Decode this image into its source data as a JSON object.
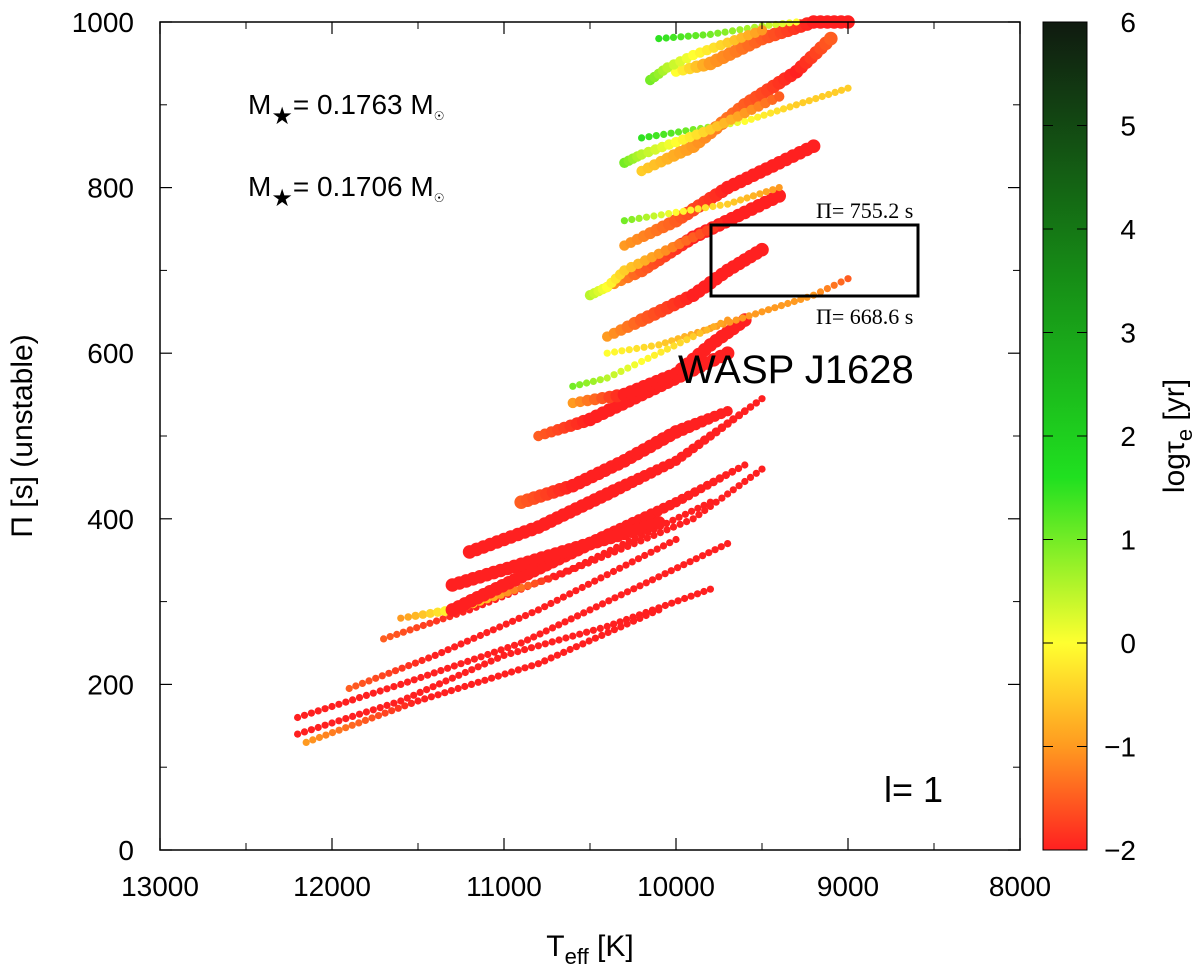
{
  "chart_data": {
    "type": "scatter",
    "title": "",
    "xlabel": {
      "main": "T",
      "sub": "eff",
      "unit": " [K]"
    },
    "ylabel": "Π [s] (unstable)",
    "xlim": [
      13000,
      8000
    ],
    "x_reversed": true,
    "ylim": [
      0,
      1000
    ],
    "x_ticks": [
      "13000",
      "12000",
      "11000",
      "10000",
      "9000",
      "8000"
    ],
    "y_ticks": [
      "0",
      "200",
      "400",
      "600",
      "800",
      "1000"
    ],
    "grid": false,
    "colorbar": {
      "label_main": "logτ",
      "label_sub": "e",
      "label_unit": " [yr]",
      "range": [
        -2,
        6
      ],
      "ticks": [
        "−2",
        "−1",
        "0",
        "1",
        "2",
        "3",
        "4",
        "5",
        "6"
      ],
      "colors": [
        "#ff2020",
        "#ff9a20",
        "#ffff30",
        "#20e020",
        "#168a16",
        "#101a10"
      ]
    },
    "annotations": {
      "mass1": {
        "prefix": "M",
        "star": "★",
        "value": "= 0.1763 M",
        "sun": "☉"
      },
      "mass2": {
        "prefix": "M",
        "star": "★",
        "value": "= 0.1706 M",
        "sun": "☉"
      },
      "star_name": "WASP J1628",
      "box_upper_label": "Π= 755.2 s",
      "box_lower_label": "Π= 668.6 s",
      "degree": "l= 1"
    },
    "box": {
      "teff_range": [
        9800,
        8600
      ],
      "period_range": [
        668.6,
        755.2
      ]
    },
    "series": [
      {
        "x": [
          12200,
          11600,
          11000,
          10400,
          9800
        ],
        "y": [
          140,
          180,
          235,
          270,
          315
        ],
        "logtau": [
          -2,
          -2,
          -2,
          -2,
          -2
        ],
        "size": [
          1,
          1,
          1,
          1,
          1
        ]
      },
      {
        "x": [
          12150,
          11500,
          10800,
          10100
        ],
        "y": [
          130,
          180,
          225,
          290
        ],
        "logtau": [
          -1,
          -2,
          -2,
          -2
        ],
        "size": [
          1,
          1,
          1,
          1
        ]
      },
      {
        "x": [
          12200,
          11600,
          10900,
          10100,
          9700
        ],
        "y": [
          160,
          200,
          250,
          330,
          370
        ],
        "logtau": [
          -2,
          -2,
          -2,
          -2,
          -2
        ],
        "size": [
          1,
          1,
          1,
          1,
          1
        ]
      },
      {
        "x": [
          11900,
          11400,
          10800,
          10000
        ],
        "y": [
          195,
          235,
          290,
          375
        ],
        "logtau": [
          -1.5,
          -2,
          -2,
          -2
        ],
        "size": [
          1,
          1,
          1,
          1
        ]
      },
      {
        "x": [
          11700,
          11200,
          10600,
          9800
        ],
        "y": [
          255,
          290,
          340,
          420
        ],
        "logtau": [
          -1.5,
          -2,
          -2,
          -2
        ],
        "size": [
          1,
          1,
          1,
          1
        ]
      },
      {
        "x": [
          11600,
          11300,
          10700,
          9900,
          9500
        ],
        "y": [
          280,
          290,
          330,
          400,
          460
        ],
        "logtau": [
          -1,
          0,
          -2,
          -2,
          -2
        ],
        "size": [
          1,
          2,
          1,
          1,
          1
        ]
      },
      {
        "x": [
          11300,
          10900,
          10500,
          10000,
          9600
        ],
        "y": [
          290,
          330,
          370,
          420,
          465
        ],
        "logtau": [
          -2,
          -2,
          -2,
          -2,
          -2
        ],
        "size": [
          3,
          3,
          3,
          2,
          1
        ]
      },
      {
        "x": [
          11300,
          10900,
          10500,
          10100
        ],
        "y": [
          320,
          345,
          370,
          395
        ],
        "logtau": [
          -2,
          -2,
          -2,
          -2
        ],
        "size": [
          3,
          3,
          3,
          3
        ]
      },
      {
        "x": [
          11200,
          10800,
          10400,
          10000,
          9500
        ],
        "y": [
          360,
          390,
          430,
          470,
          545
        ],
        "logtau": [
          -2,
          -2,
          -2,
          -2,
          -2
        ],
        "size": [
          3,
          3,
          3,
          2,
          1
        ]
      },
      {
        "x": [
          10900,
          10600,
          10300,
          10000,
          9700
        ],
        "y": [
          420,
          440,
          470,
          505,
          530
        ],
        "logtau": [
          -1.5,
          -2,
          -2,
          -2,
          -2
        ],
        "size": [
          3,
          3,
          3,
          3,
          2
        ]
      },
      {
        "x": [
          10800,
          10500,
          10200,
          9900,
          9700
        ],
        "y": [
          500,
          520,
          550,
          580,
          600
        ],
        "logtau": [
          -1.5,
          -2,
          -2,
          -2,
          -2
        ],
        "size": [
          2,
          3,
          3,
          3,
          3
        ]
      },
      {
        "x": [
          10600,
          10300,
          10000,
          9800,
          9600
        ],
        "y": [
          540,
          550,
          575,
          610,
          640
        ],
        "logtau": [
          -1,
          -2,
          -2,
          -2,
          -2
        ],
        "size": [
          2,
          3,
          3,
          3,
          3
        ]
      },
      {
        "x": [
          10400,
          10200,
          9900,
          9700,
          9500
        ],
        "y": [
          620,
          640,
          670,
          700,
          725
        ],
        "logtau": [
          -1,
          -1.5,
          -2,
          -2,
          -2
        ],
        "size": [
          2,
          3,
          3,
          3,
          3
        ]
      },
      {
        "x": [
          10400,
          10200,
          9900,
          9600,
          9400
        ],
        "y": [
          680,
          700,
          740,
          770,
          790
        ],
        "logtau": [
          -1,
          -1.5,
          -2,
          -2,
          -2
        ],
        "size": [
          2,
          3,
          3,
          3,
          3
        ]
      },
      {
        "x": [
          10300,
          10000,
          9700,
          9400,
          9200
        ],
        "y": [
          730,
          760,
          800,
          830,
          850
        ],
        "logtau": [
          -1,
          -1.5,
          -2,
          -2,
          -2
        ],
        "size": [
          2,
          3,
          3,
          3,
          3
        ]
      },
      {
        "x": [
          10200,
          9900,
          9600,
          9300,
          9100
        ],
        "y": [
          820,
          850,
          900,
          940,
          980
        ],
        "logtau": [
          -0.5,
          -1,
          -1.5,
          -2,
          -1.5
        ],
        "size": [
          2,
          3,
          3,
          3,
          3
        ]
      },
      {
        "x": [
          10000,
          9800,
          9500,
          9200,
          9000
        ],
        "y": [
          940,
          950,
          980,
          1000,
          1000
        ],
        "logtau": [
          0,
          -1,
          -1.5,
          -2,
          -2
        ],
        "size": [
          2,
          3,
          3,
          3,
          3
        ]
      },
      {
        "x": [
          10400,
          10100,
          9800,
          9500,
          9200,
          9000
        ],
        "y": [
          600,
          610,
          630,
          650,
          670,
          690
        ],
        "logtau": [
          0,
          -0.5,
          -1,
          -1,
          -1,
          -1.5
        ],
        "size": [
          1,
          1,
          1,
          1,
          1,
          1
        ]
      },
      {
        "x": [
          10300,
          10000,
          9700,
          9400
        ],
        "y": [
          760,
          770,
          780,
          800
        ],
        "logtau": [
          1,
          0,
          -0.5,
          -1
        ],
        "size": [
          1,
          1,
          1,
          1
        ]
      },
      {
        "x": [
          10200,
          9900,
          9600,
          9300,
          9000
        ],
        "y": [
          860,
          870,
          880,
          900,
          920
        ],
        "logtau": [
          1.5,
          1,
          0,
          -0.5,
          -0.5
        ],
        "size": [
          1,
          1,
          1,
          1,
          1
        ]
      },
      {
        "x": [
          10100,
          9800,
          9500,
          9300
        ],
        "y": [
          980,
          985,
          995,
          1000
        ],
        "logtau": [
          1.5,
          1,
          0.5,
          0
        ],
        "size": [
          1,
          1,
          1,
          1
        ]
      },
      {
        "x": [
          10600,
          10400,
          10200,
          9900,
          9700
        ],
        "y": [
          560,
          570,
          590,
          620,
          640
        ],
        "logtau": [
          1,
          0.5,
          0,
          -0.5,
          -1
        ],
        "size": [
          1,
          1,
          1,
          1,
          1
        ]
      },
      {
        "x": [
          10500,
          10400,
          10300,
          10100,
          9900,
          9700
        ],
        "y": [
          670,
          680,
          700,
          720,
          740,
          760
        ],
        "logtau": [
          0.5,
          0,
          -0.5,
          -1,
          -1.5,
          -2
        ],
        "size": [
          2,
          2,
          2,
          2,
          2,
          2
        ]
      },
      {
        "x": [
          10300,
          10200,
          10000,
          9800,
          9600,
          9400
        ],
        "y": [
          830,
          840,
          855,
          870,
          890,
          910
        ],
        "logtau": [
          1,
          0.5,
          0,
          -0.5,
          -1,
          -1.5
        ],
        "size": [
          2,
          2,
          2,
          2,
          2,
          2
        ]
      },
      {
        "x": [
          10150,
          10050,
          9900,
          9700,
          9500
        ],
        "y": [
          930,
          945,
          960,
          975,
          990
        ],
        "logtau": [
          1,
          0.5,
          0,
          -0.5,
          -1
        ],
        "size": [
          2,
          2,
          2,
          2,
          2
        ]
      }
    ]
  }
}
